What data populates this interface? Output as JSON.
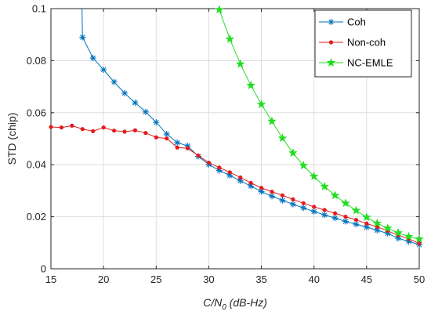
{
  "chart_data": {
    "type": "line",
    "xlabel_main": "C/N",
    "xlabel_sub": "0",
    "xlabel_rest": " (dB-Hz)",
    "ylabel": "STD (chip)",
    "xlim": [
      15,
      50
    ],
    "ylim": [
      0,
      0.1
    ],
    "xticks": [
      15,
      20,
      25,
      30,
      35,
      40,
      45,
      50
    ],
    "yticks": [
      0,
      0.02,
      0.04,
      0.06,
      0.08,
      0.1
    ],
    "ytick_labels": [
      "0",
      "0.02",
      "0.04",
      "0.06",
      "0.08",
      "0.1"
    ],
    "grid": true,
    "legend_position": "top-right",
    "series": [
      {
        "name": "Coh",
        "color": "#0072BD",
        "marker": "asterisk",
        "x": [
          18,
          19,
          20,
          21,
          22,
          23,
          24,
          25,
          26,
          27,
          28,
          29,
          30,
          31,
          32,
          33,
          34,
          35,
          36,
          37,
          38,
          39,
          40,
          41,
          42,
          43,
          44,
          45,
          46,
          47,
          48,
          49,
          50
        ],
        "values": [
          0.089,
          0.081,
          0.0765,
          0.0718,
          0.0675,
          0.0638,
          0.0603,
          0.0563,
          0.0518,
          0.0485,
          0.0472,
          0.0432,
          0.0401,
          0.0378,
          0.0359,
          0.0338,
          0.0318,
          0.0297,
          0.0279,
          0.0263,
          0.0248,
          0.0234,
          0.022,
          0.0207,
          0.0195,
          0.0182,
          0.0171,
          0.016,
          0.0148,
          0.0136,
          0.0117,
          0.0105,
          0.0093
        ],
        "steep_lead_in": [
          [
            17.95,
            0.1
          ],
          [
            18,
            0.089
          ]
        ]
      },
      {
        "name": "Non-coh",
        "color": "#E31A1C",
        "marker": "dot",
        "x": [
          15,
          16,
          17,
          18,
          19,
          20,
          21,
          22,
          23,
          24,
          25,
          26,
          27,
          28,
          29,
          30,
          31,
          32,
          33,
          34,
          35,
          36,
          37,
          38,
          39,
          40,
          41,
          42,
          43,
          44,
          45,
          46,
          47,
          48,
          49,
          50
        ],
        "values": [
          0.0545,
          0.0543,
          0.055,
          0.0537,
          0.0529,
          0.0543,
          0.0531,
          0.0527,
          0.0532,
          0.0522,
          0.0505,
          0.0501,
          0.0466,
          0.0463,
          0.0435,
          0.0408,
          0.0389,
          0.0371,
          0.0351,
          0.033,
          0.0311,
          0.0296,
          0.0282,
          0.0267,
          0.0252,
          0.0238,
          0.0226,
          0.0213,
          0.02,
          0.0188,
          0.0174,
          0.0161,
          0.0146,
          0.0129,
          0.0115,
          0.0097
        ]
      },
      {
        "name": "NC-EMLE",
        "color": "#22DD22",
        "marker": "star",
        "x": [
          31,
          32,
          33,
          34,
          35,
          36,
          37,
          38,
          39,
          40,
          41,
          42,
          43,
          44,
          45,
          46,
          47,
          48,
          49,
          50
        ],
        "values": [
          0.0996,
          0.0883,
          0.0787,
          0.0705,
          0.0632,
          0.0567,
          0.0502,
          0.0445,
          0.0397,
          0.0355,
          0.0316,
          0.0282,
          0.0252,
          0.0224,
          0.0198,
          0.0175,
          0.0156,
          0.0138,
          0.0124,
          0.0114
        ]
      }
    ]
  }
}
